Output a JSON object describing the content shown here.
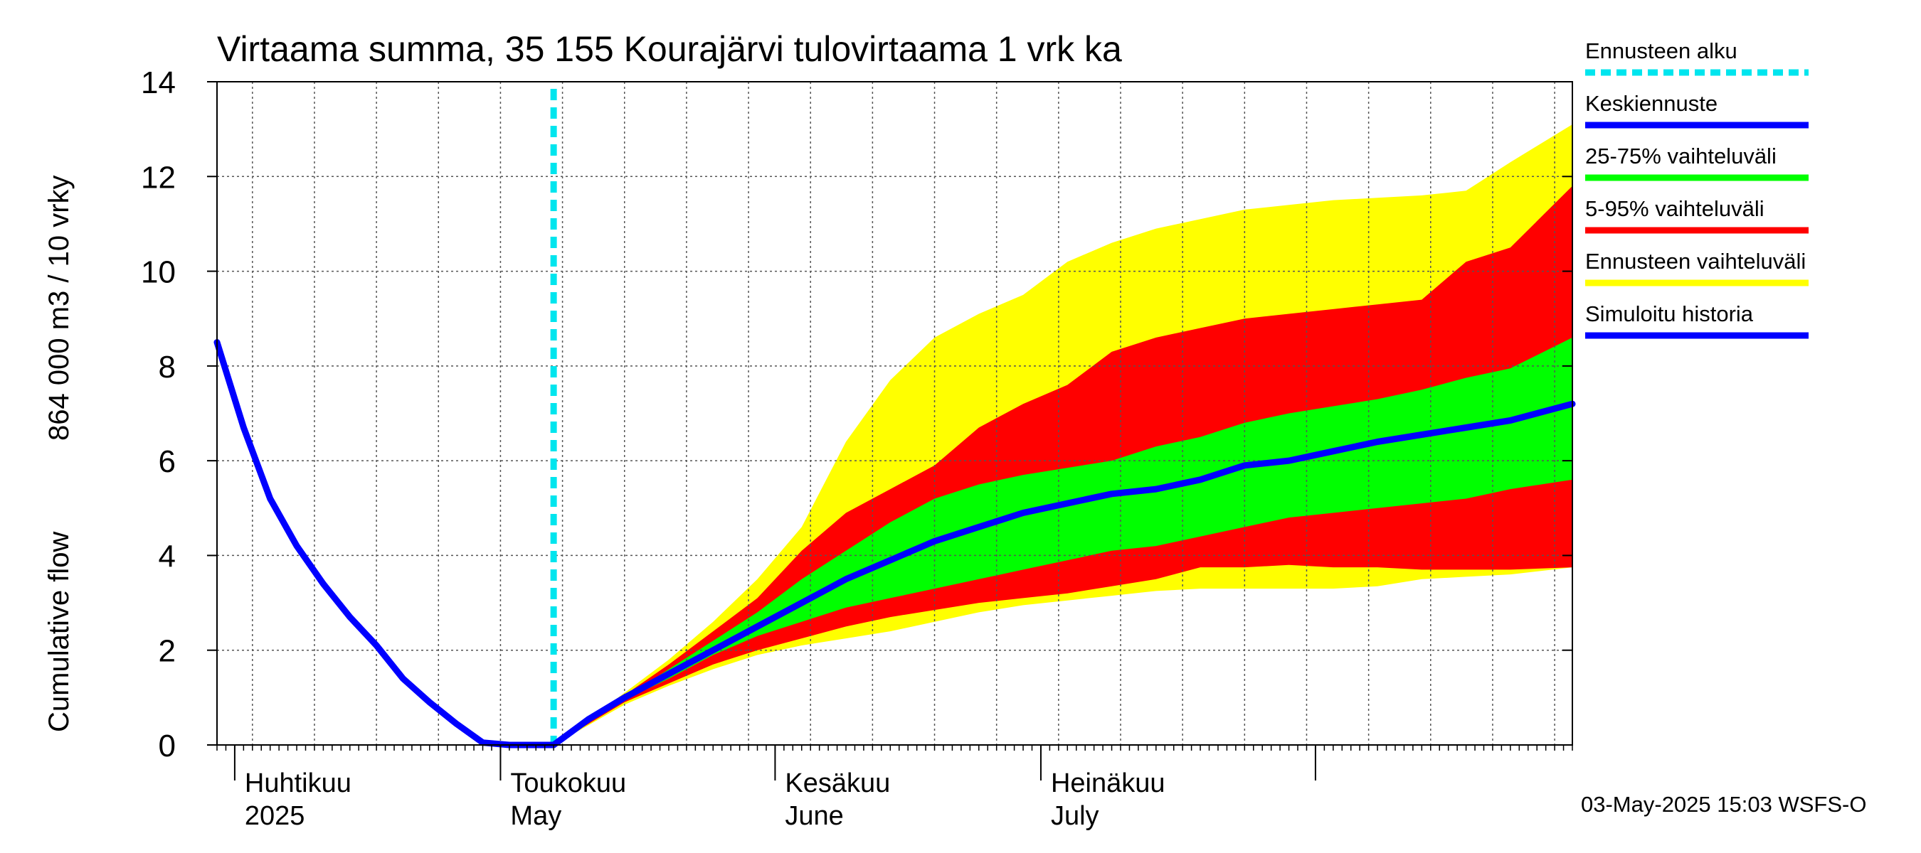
{
  "chart_data": {
    "type": "area",
    "title": "Virtaama summa, 35 155 Kourajärvi tulovirtaama 1 vrk ka",
    "ylabel_line1": "Cumulative flow",
    "ylabel_line2": "864 000 m3 / 10 vrky",
    "xlabel": "",
    "x_unit": "day of year 2025",
    "xlim": [
      89,
      242
    ],
    "ylim": [
      0,
      14
    ],
    "yticks": [
      0,
      2,
      4,
      6,
      8,
      10,
      12,
      14
    ],
    "grid": true,
    "forecast_start_day": 127,
    "month_labels": [
      {
        "day": 91,
        "fi": "Huhtikuu",
        "en": "2025"
      },
      {
        "day": 121,
        "fi": "Toukokuu",
        "en": "May"
      },
      {
        "day": 152,
        "fi": "Kesäkuu",
        "en": "June"
      },
      {
        "day": 182,
        "fi": "Heinäkuu",
        "en": "July"
      }
    ],
    "legend": [
      {
        "label": "Ennusteen alku",
        "color": "#00e5ee",
        "style": "dotted"
      },
      {
        "label": "Keskiennuste",
        "color": "#0000ff",
        "style": "solid"
      },
      {
        "label": "25-75% vaihteluväli",
        "color": "#00ff00",
        "style": "solid"
      },
      {
        "label": "5-95% vaihteluväli",
        "color": "#ff0000",
        "style": "solid"
      },
      {
        "label": "Ennusteen vaihteluväli",
        "color": "#ffff00",
        "style": "solid"
      },
      {
        "label": "Simuloitu historia",
        "color": "#0000ff",
        "style": "solid"
      }
    ],
    "colors": {
      "range": "#ffff00",
      "p5_95": "#ff0000",
      "p25_75": "#00ff00",
      "median": "#0000ff",
      "history": "#0000ff",
      "forecast_start": "#00e5ee"
    },
    "history": {
      "x": [
        89,
        92,
        95,
        98,
        101,
        104,
        107,
        110,
        113,
        116,
        119,
        122,
        125,
        127
      ],
      "y": [
        8.5,
        6.7,
        5.2,
        4.2,
        3.4,
        2.7,
        2.1,
        1.4,
        0.9,
        0.45,
        0.05,
        0.0,
        0.0,
        0.0
      ]
    },
    "median": {
      "x": [
        127,
        131,
        135,
        140,
        145,
        150,
        155,
        160,
        165,
        170,
        175,
        180,
        185,
        190,
        195,
        200,
        205,
        210,
        215,
        220,
        225,
        230,
        235,
        242
      ],
      "y": [
        0.0,
        0.55,
        1.0,
        1.5,
        2.0,
        2.5,
        3.0,
        3.5,
        3.9,
        4.3,
        4.6,
        4.9,
        5.1,
        5.3,
        5.4,
        5.6,
        5.9,
        6.0,
        6.2,
        6.4,
        6.55,
        6.7,
        6.85,
        7.2
      ]
    },
    "band_max": {
      "x": [
        127,
        135,
        140,
        145,
        150,
        155,
        160,
        165,
        170,
        175,
        180,
        185,
        190,
        195,
        200,
        205,
        210,
        215,
        220,
        225,
        230,
        235,
        242
      ],
      "y": [
        0.0,
        1.1,
        1.8,
        2.6,
        3.5,
        4.6,
        6.4,
        7.7,
        8.6,
        9.1,
        9.5,
        10.2,
        10.6,
        10.9,
        11.1,
        11.3,
        11.4,
        11.5,
        11.55,
        11.6,
        11.7,
        12.3,
        13.1
      ]
    },
    "band_p95": {
      "x": [
        127,
        135,
        140,
        145,
        150,
        155,
        160,
        165,
        170,
        175,
        180,
        185,
        190,
        195,
        200,
        205,
        210,
        215,
        220,
        225,
        230,
        235,
        242
      ],
      "y": [
        0.0,
        1.05,
        1.7,
        2.4,
        3.1,
        4.1,
        4.9,
        5.4,
        5.9,
        6.7,
        7.2,
        7.6,
        8.3,
        8.6,
        8.8,
        9.0,
        9.1,
        9.2,
        9.3,
        9.4,
        10.2,
        10.5,
        11.8
      ]
    },
    "band_p75": {
      "x": [
        127,
        135,
        140,
        145,
        150,
        155,
        160,
        165,
        170,
        175,
        180,
        185,
        190,
        195,
        200,
        205,
        210,
        215,
        220,
        225,
        230,
        235,
        242
      ],
      "y": [
        0.0,
        1.0,
        1.6,
        2.2,
        2.8,
        3.5,
        4.1,
        4.7,
        5.2,
        5.5,
        5.7,
        5.85,
        6.0,
        6.3,
        6.5,
        6.8,
        7.0,
        7.15,
        7.3,
        7.5,
        7.75,
        7.95,
        8.6
      ]
    },
    "band_p25": {
      "x": [
        127,
        135,
        140,
        145,
        150,
        155,
        160,
        165,
        170,
        175,
        180,
        185,
        190,
        195,
        200,
        205,
        210,
        215,
        220,
        225,
        230,
        235,
        242
      ],
      "y": [
        0.0,
        0.95,
        1.4,
        1.9,
        2.3,
        2.6,
        2.9,
        3.1,
        3.3,
        3.5,
        3.7,
        3.9,
        4.1,
        4.2,
        4.4,
        4.6,
        4.8,
        4.9,
        5.0,
        5.1,
        5.2,
        5.4,
        5.6
      ]
    },
    "band_p5": {
      "x": [
        127,
        135,
        140,
        145,
        150,
        155,
        160,
        165,
        170,
        175,
        180,
        185,
        190,
        195,
        200,
        205,
        210,
        215,
        220,
        225,
        230,
        235,
        242
      ],
      "y": [
        0.0,
        0.9,
        1.3,
        1.7,
        2.0,
        2.25,
        2.5,
        2.7,
        2.85,
        3.0,
        3.1,
        3.2,
        3.35,
        3.5,
        3.75,
        3.75,
        3.8,
        3.75,
        3.75,
        3.7,
        3.7,
        3.7,
        3.75
      ]
    },
    "band_min": {
      "x": [
        127,
        135,
        140,
        145,
        150,
        155,
        160,
        165,
        170,
        175,
        180,
        185,
        190,
        195,
        200,
        205,
        210,
        215,
        220,
        225,
        230,
        235,
        242
      ],
      "y": [
        0.0,
        0.85,
        1.25,
        1.6,
        1.9,
        2.1,
        2.25,
        2.4,
        2.6,
        2.8,
        2.95,
        3.05,
        3.15,
        3.25,
        3.3,
        3.3,
        3.3,
        3.3,
        3.35,
        3.5,
        3.55,
        3.6,
        3.75
      ]
    }
  },
  "footer": "03-May-2025 15:03 WSFS-O"
}
